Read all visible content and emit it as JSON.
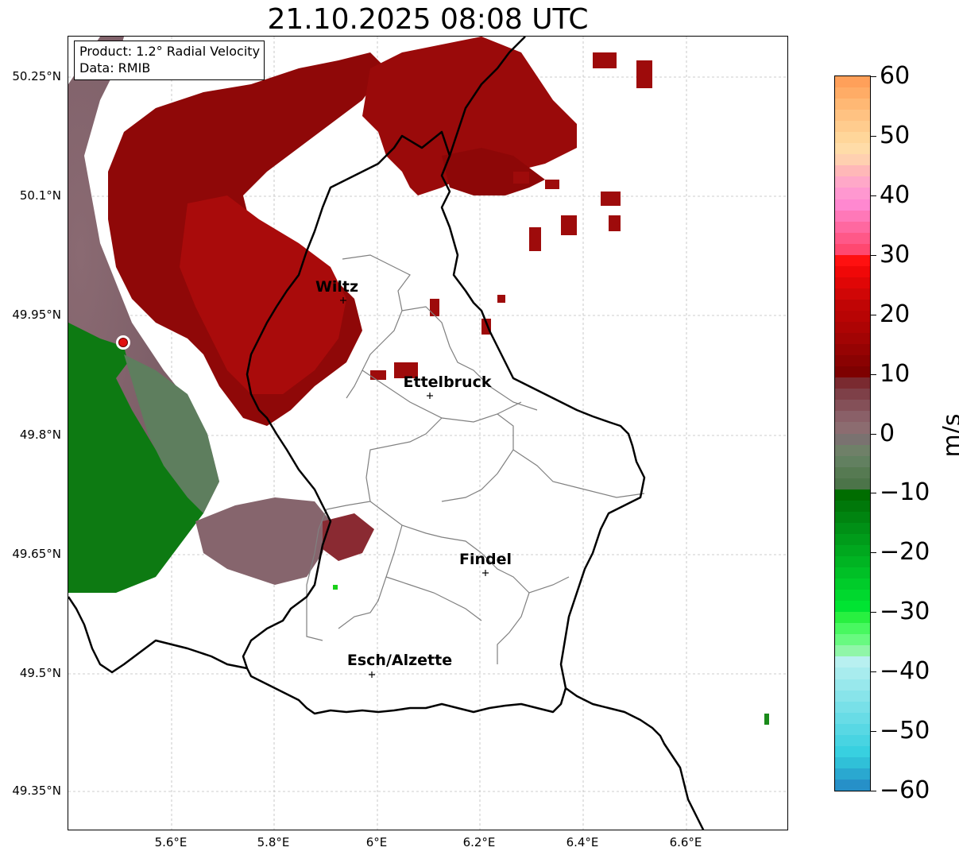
{
  "title": "21.10.2025 08:08 UTC",
  "info": {
    "product": "Product: 1.2° Radial Velocity",
    "data_source": "Data: RMIB"
  },
  "latitude_labels": [
    "50.25°N",
    "50.1°N",
    "49.95°N",
    "49.8°N",
    "49.65°N",
    "49.5°N",
    "49.35°N"
  ],
  "longitude_labels": [
    "5.6°E",
    "5.8°E",
    "6°E",
    "6.2°E",
    "6.4°E",
    "6.6°E"
  ],
  "cities": [
    {
      "name": "Wiltz"
    },
    {
      "name": "Ettelbruck"
    },
    {
      "name": "Findel"
    },
    {
      "name": "Esch/Alzette"
    }
  ],
  "colorbar": {
    "unit": "m/s",
    "tick_labels": [
      "60",
      "50",
      "40",
      "30",
      "20",
      "10",
      "0",
      "−10",
      "−20",
      "−30",
      "−40",
      "−50",
      "−60"
    ],
    "range": [
      -60,
      60
    ]
  },
  "colors": {
    "outbound_red": "#9b0a0a",
    "inbound_green": "#0c7a12",
    "near_zero_mauve": "#8a6a72",
    "near_zero_green": "#5f7f5f",
    "radar_site": "#e01010",
    "border": "#000000",
    "canton_line": "#808080"
  }
}
